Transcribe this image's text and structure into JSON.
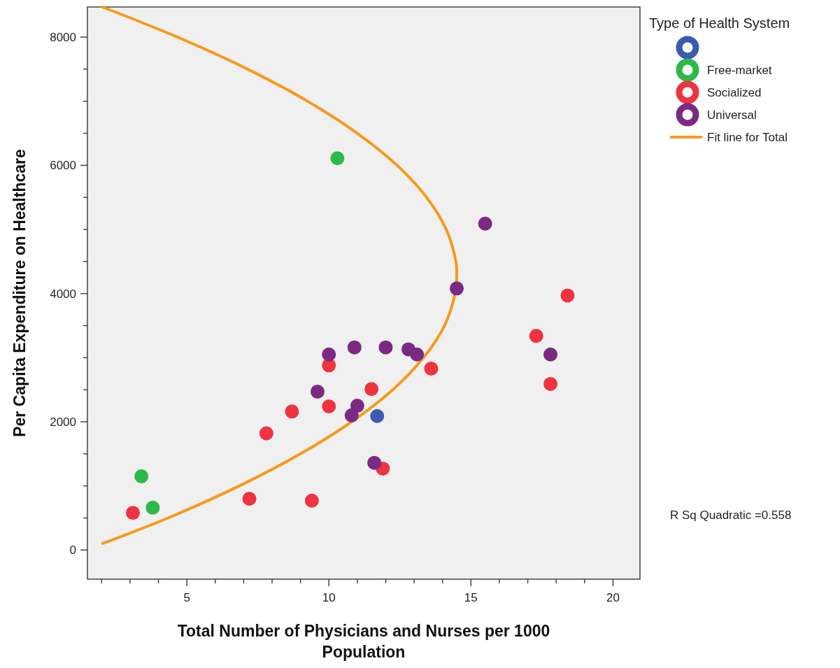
{
  "chart_data": {
    "type": "scatter",
    "xlabel": "Total Number of Physicians and Nurses per 1000 Population",
    "ylabel": "Per Capita Expenditure on Healthcare",
    "legend_title": "Type of Health System",
    "legend": "top right",
    "marker": "circle",
    "grid": false,
    "xlim": [
      1.5,
      20.95
    ],
    "ylim": [
      -455,
      8470
    ],
    "xticks": [
      {
        "value": 2,
        "label": null
      },
      {
        "value": 3,
        "label": null
      },
      {
        "value": 4,
        "label": null
      },
      5,
      {
        "value": 6,
        "label": null
      },
      {
        "value": 7,
        "label": null
      },
      {
        "value": 8,
        "label": null
      },
      {
        "value": 9,
        "label": null
      },
      10,
      {
        "value": 11,
        "label": null
      },
      {
        "value": 12,
        "label": null
      },
      {
        "value": 13,
        "label": null
      },
      {
        "value": 14,
        "label": null
      },
      15,
      {
        "value": 16,
        "label": null
      },
      {
        "value": 17,
        "label": null
      },
      {
        "value": 18,
        "label": null
      },
      {
        "value": 19,
        "label": null
      },
      20
    ],
    "yticks": [
      0,
      {
        "value": 500,
        "label": null
      },
      {
        "value": 1000,
        "label": null
      },
      {
        "value": 1500,
        "label": null
      },
      2000,
      {
        "value": 2500,
        "label": null
      },
      {
        "value": 3000,
        "label": null
      },
      {
        "value": 3500,
        "label": null
      },
      4000,
      {
        "value": 4500,
        "label": null
      },
      {
        "value": 5000,
        "label": null
      },
      {
        "value": 5500,
        "label": null
      },
      6000,
      {
        "value": 6500,
        "label": null
      },
      {
        "value": 7000,
        "label": null
      },
      {
        "value": 7500,
        "label": null
      },
      8000
    ],
    "series": [
      {
        "color": "#3a5bb0",
        "x": [
          11.7
        ],
        "values": [
          2090
        ]
      },
      {
        "name": "Free-market",
        "color": "#2db84a",
        "x": [
          10.3,
          3.4,
          3.8
        ],
        "values": [
          6110,
          1150,
          660
        ]
      },
      {
        "name": "Socialized",
        "color": "#ef3340",
        "x": [
          10.0,
          13.6,
          11.5,
          10.0,
          8.7,
          7.8,
          11.9,
          7.2,
          9.4,
          3.1,
          18.4,
          17.3,
          17.8
        ],
        "values": [
          2880,
          2830,
          2510,
          2240,
          2160,
          1820,
          1270,
          800,
          770,
          580,
          3970,
          3340,
          2590
        ]
      },
      {
        "name": "Universal",
        "color": "#7b2a84",
        "x": [
          10.0,
          10.9,
          12.0,
          12.8,
          13.1,
          9.6,
          11.0,
          10.8,
          11.6,
          14.5,
          17.8,
          15.5
        ],
        "values": [
          3050,
          3160,
          3160,
          3130,
          3050,
          2470,
          2250,
          2100,
          1360,
          4080,
          3050,
          5090
        ]
      },
      {
        "name": "Fit line for Total",
        "type": "line",
        "color": "#f7991c",
        "marker": "none",
        "line_style": "solid",
        "x": [
          2.03,
          4.34,
          6.85,
          9.0,
          10.8,
          12.25,
          13.33,
          14.07,
          14.44,
          14.5,
          14.47,
          14.13,
          13.44,
          12.4,
          11.0,
          9.25,
          7.14,
          4.67,
          2.03
        ],
        "values": [
          100,
          500,
          1000,
          1500,
          2000,
          2500,
          3000,
          3500,
          4000,
          4280,
          4500,
          5000,
          5500,
          6000,
          6500,
          7000,
          7500,
          8000,
          8470
        ]
      }
    ],
    "annotations": [
      "R Sq Quadratic =0.558"
    ]
  }
}
